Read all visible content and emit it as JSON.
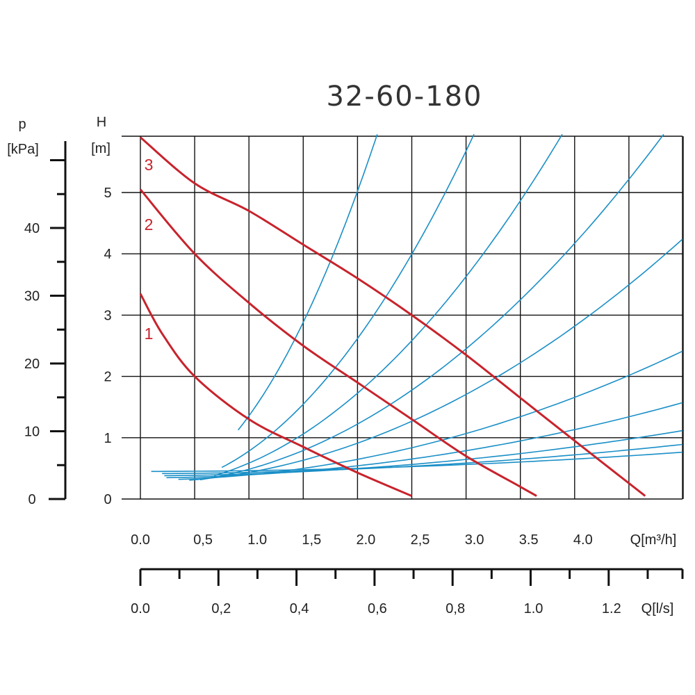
{
  "chart_data": {
    "type": "line",
    "title": "32-60-180",
    "grid": true,
    "primary_axis_labels": {
      "x": "Q[m³/h]",
      "y_top": "H",
      "y_bottom": "[m]"
    },
    "pressure_axis": {
      "label_top": "p",
      "label_bottom": "[kPa]",
      "range": [
        0,
        50
      ],
      "ticks": [
        "0",
        "10",
        "20",
        "30",
        "40"
      ],
      "tick_values": [
        0,
        10,
        20,
        30,
        40
      ]
    },
    "flow_ls_axis": {
      "label": "Q[l/s]",
      "range": [
        0,
        1.39
      ],
      "ticks": [
        "0.0",
        "0,2",
        "0,4",
        "0,6",
        "0,8",
        "1.0",
        "1.2"
      ],
      "tick_values": [
        0,
        0.2,
        0.4,
        0.6,
        0.8,
        1.0,
        1.2
      ]
    },
    "xlim": [
      0,
      5
    ],
    "ylim": [
      0,
      5.8
    ],
    "x_ticks": [
      "0.0",
      "0,5",
      "1.0",
      "1,5",
      "2.0",
      "2,5",
      "3.0",
      "3.5",
      "4.0"
    ],
    "x_tick_values": [
      0,
      0.5,
      1.0,
      1.5,
      2.0,
      2.5,
      3.0,
      3.5,
      4.0
    ],
    "y_ticks": [
      "0",
      "1",
      "2",
      "3",
      "4",
      "5"
    ],
    "y_tick_values": [
      0,
      1,
      2,
      3,
      4,
      5
    ],
    "series": [
      {
        "name": "1",
        "color": "#c8232c",
        "points": [
          [
            0,
            3.35
          ],
          [
            0.2,
            2.7
          ],
          [
            0.5,
            2.0
          ],
          [
            1.0,
            1.3
          ],
          [
            1.5,
            0.85
          ],
          [
            2.0,
            0.43
          ],
          [
            2.5,
            0.05
          ]
        ]
      },
      {
        "name": "2",
        "color": "#c8232c",
        "points": [
          [
            0,
            5.05
          ],
          [
            0.5,
            4.0
          ],
          [
            1.0,
            3.2
          ],
          [
            1.5,
            2.5
          ],
          [
            2.0,
            1.9
          ],
          [
            2.5,
            1.3
          ],
          [
            3.0,
            0.7
          ],
          [
            3.5,
            0.2
          ],
          [
            3.65,
            0.05
          ]
        ]
      },
      {
        "name": "3",
        "color": "#c8232c",
        "points": [
          [
            0,
            5.9
          ],
          [
            0.5,
            5.15
          ],
          [
            1.0,
            4.7
          ],
          [
            1.5,
            4.15
          ],
          [
            2.0,
            3.6
          ],
          [
            2.5,
            3.0
          ],
          [
            3.0,
            2.35
          ],
          [
            3.5,
            1.65
          ],
          [
            4.0,
            0.95
          ],
          [
            4.65,
            0.05
          ]
        ]
      }
    ],
    "system_curves": {
      "color": "#1a8fc7",
      "h_end": 5.95,
      "curves": [
        {
          "k": 0.0136,
          "q_start": 0.1
        },
        {
          "k": 0.0205,
          "q_start": 0.2
        },
        {
          "k": 0.0315,
          "q_start": 0.22
        },
        {
          "k": 0.0522,
          "q_start": 0.24
        },
        {
          "k": 0.0889,
          "q_start": 0.35
        },
        {
          "k": 0.1667,
          "q_start": 0.45
        },
        {
          "k": 0.256,
          "q_start": 0.55
        },
        {
          "k": 0.394,
          "q_start": 0.68
        },
        {
          "k": 0.63,
          "q_start": 0.75
        },
        {
          "k": 1.25,
          "q_start": 0.9
        }
      ]
    }
  }
}
